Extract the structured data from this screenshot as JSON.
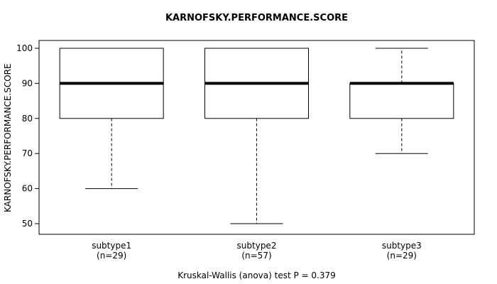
{
  "chart_data": {
    "type": "boxplot",
    "title": "KARNOFSKY.PERFORMANCE.SCORE",
    "ylabel": "KARNOFSKY.PERFORMANCE.SCORE",
    "caption": "Kruskal-Wallis (anova) test P = 0.379",
    "ylim": [
      50,
      100
    ],
    "yticks": [
      50,
      60,
      70,
      80,
      90,
      100
    ],
    "categories": [
      "subtype1",
      "subtype2",
      "subtype3"
    ],
    "n_labels": [
      "(n=29)",
      "(n=57)",
      "(n=29)"
    ],
    "boxes": [
      {
        "group": "subtype1",
        "n": 29,
        "whisker_low": 60,
        "q1": 80,
        "median": 90,
        "q3": 100,
        "whisker_high": 100
      },
      {
        "group": "subtype2",
        "n": 57,
        "whisker_low": 50,
        "q1": 80,
        "median": 90,
        "q3": 100,
        "whisker_high": 100
      },
      {
        "group": "subtype3",
        "n": 29,
        "whisker_low": 70,
        "q1": 80,
        "median": 90,
        "q3": 90,
        "whisker_high": 100
      }
    ],
    "grid": false,
    "legend": "none",
    "line_color": "#000000",
    "box_fill": "#ffffff"
  }
}
